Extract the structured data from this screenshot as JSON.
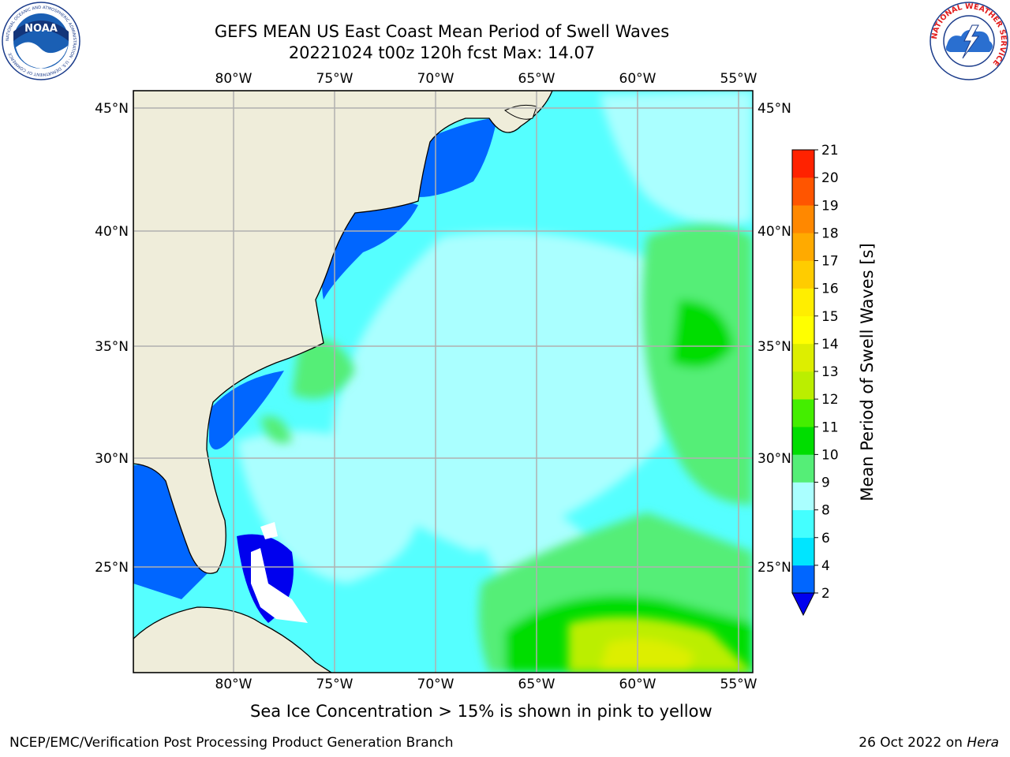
{
  "title": {
    "line1": "GEFS MEAN US East Coast Mean Period of Swell Waves",
    "line2": "20221024 t00z 120h fcst   Max: 14.07"
  },
  "map": {
    "lon_labels": [
      "80°W",
      "75°W",
      "70°W",
      "65°W",
      "60°W",
      "55°W"
    ],
    "lat_labels": [
      "45°N",
      "40°N",
      "35°N",
      "30°N",
      "25°N"
    ],
    "colors": {
      "land": "#efedda",
      "ice_free_white": "#ffffff",
      "grid": "#b0b0b0",
      "coast": "#000000"
    }
  },
  "colorbar": {
    "label": "Mean Period of Swell Waves [s]",
    "ticks": [
      "2",
      "4",
      "6",
      "8",
      "9",
      "10",
      "11",
      "12",
      "13",
      "14",
      "15",
      "16",
      "17",
      "18",
      "19",
      "20",
      "21"
    ],
    "colors": [
      "#0066ff",
      "#00e5ff",
      "#44ffff",
      "#aaffff",
      "#55ee77",
      "#00dd00",
      "#44ee00",
      "#bbee00",
      "#ddee00",
      "#ffff00",
      "#ffee00",
      "#ffcc00",
      "#ffaa00",
      "#ff8800",
      "#ff5500",
      "#ff2200"
    ],
    "under_color": "#0000ee"
  },
  "note": "Sea Ice Concentration > 15% is shown in pink to yellow",
  "footer": {
    "org": "NCEP/EMC/Verification Post Processing Product Generation Branch",
    "date": "26 Oct 2022 on",
    "host": "Hera"
  },
  "logos": {
    "noaa_text": "NOAA",
    "noaa_ring_text": "NATIONAL OCEANIC AND ATMOSPHERIC ADMINISTRATION · U.S. DEPARTMENT OF COMMERCE",
    "nws_ring_text": "NATIONAL WEATHER SERVICE"
  }
}
